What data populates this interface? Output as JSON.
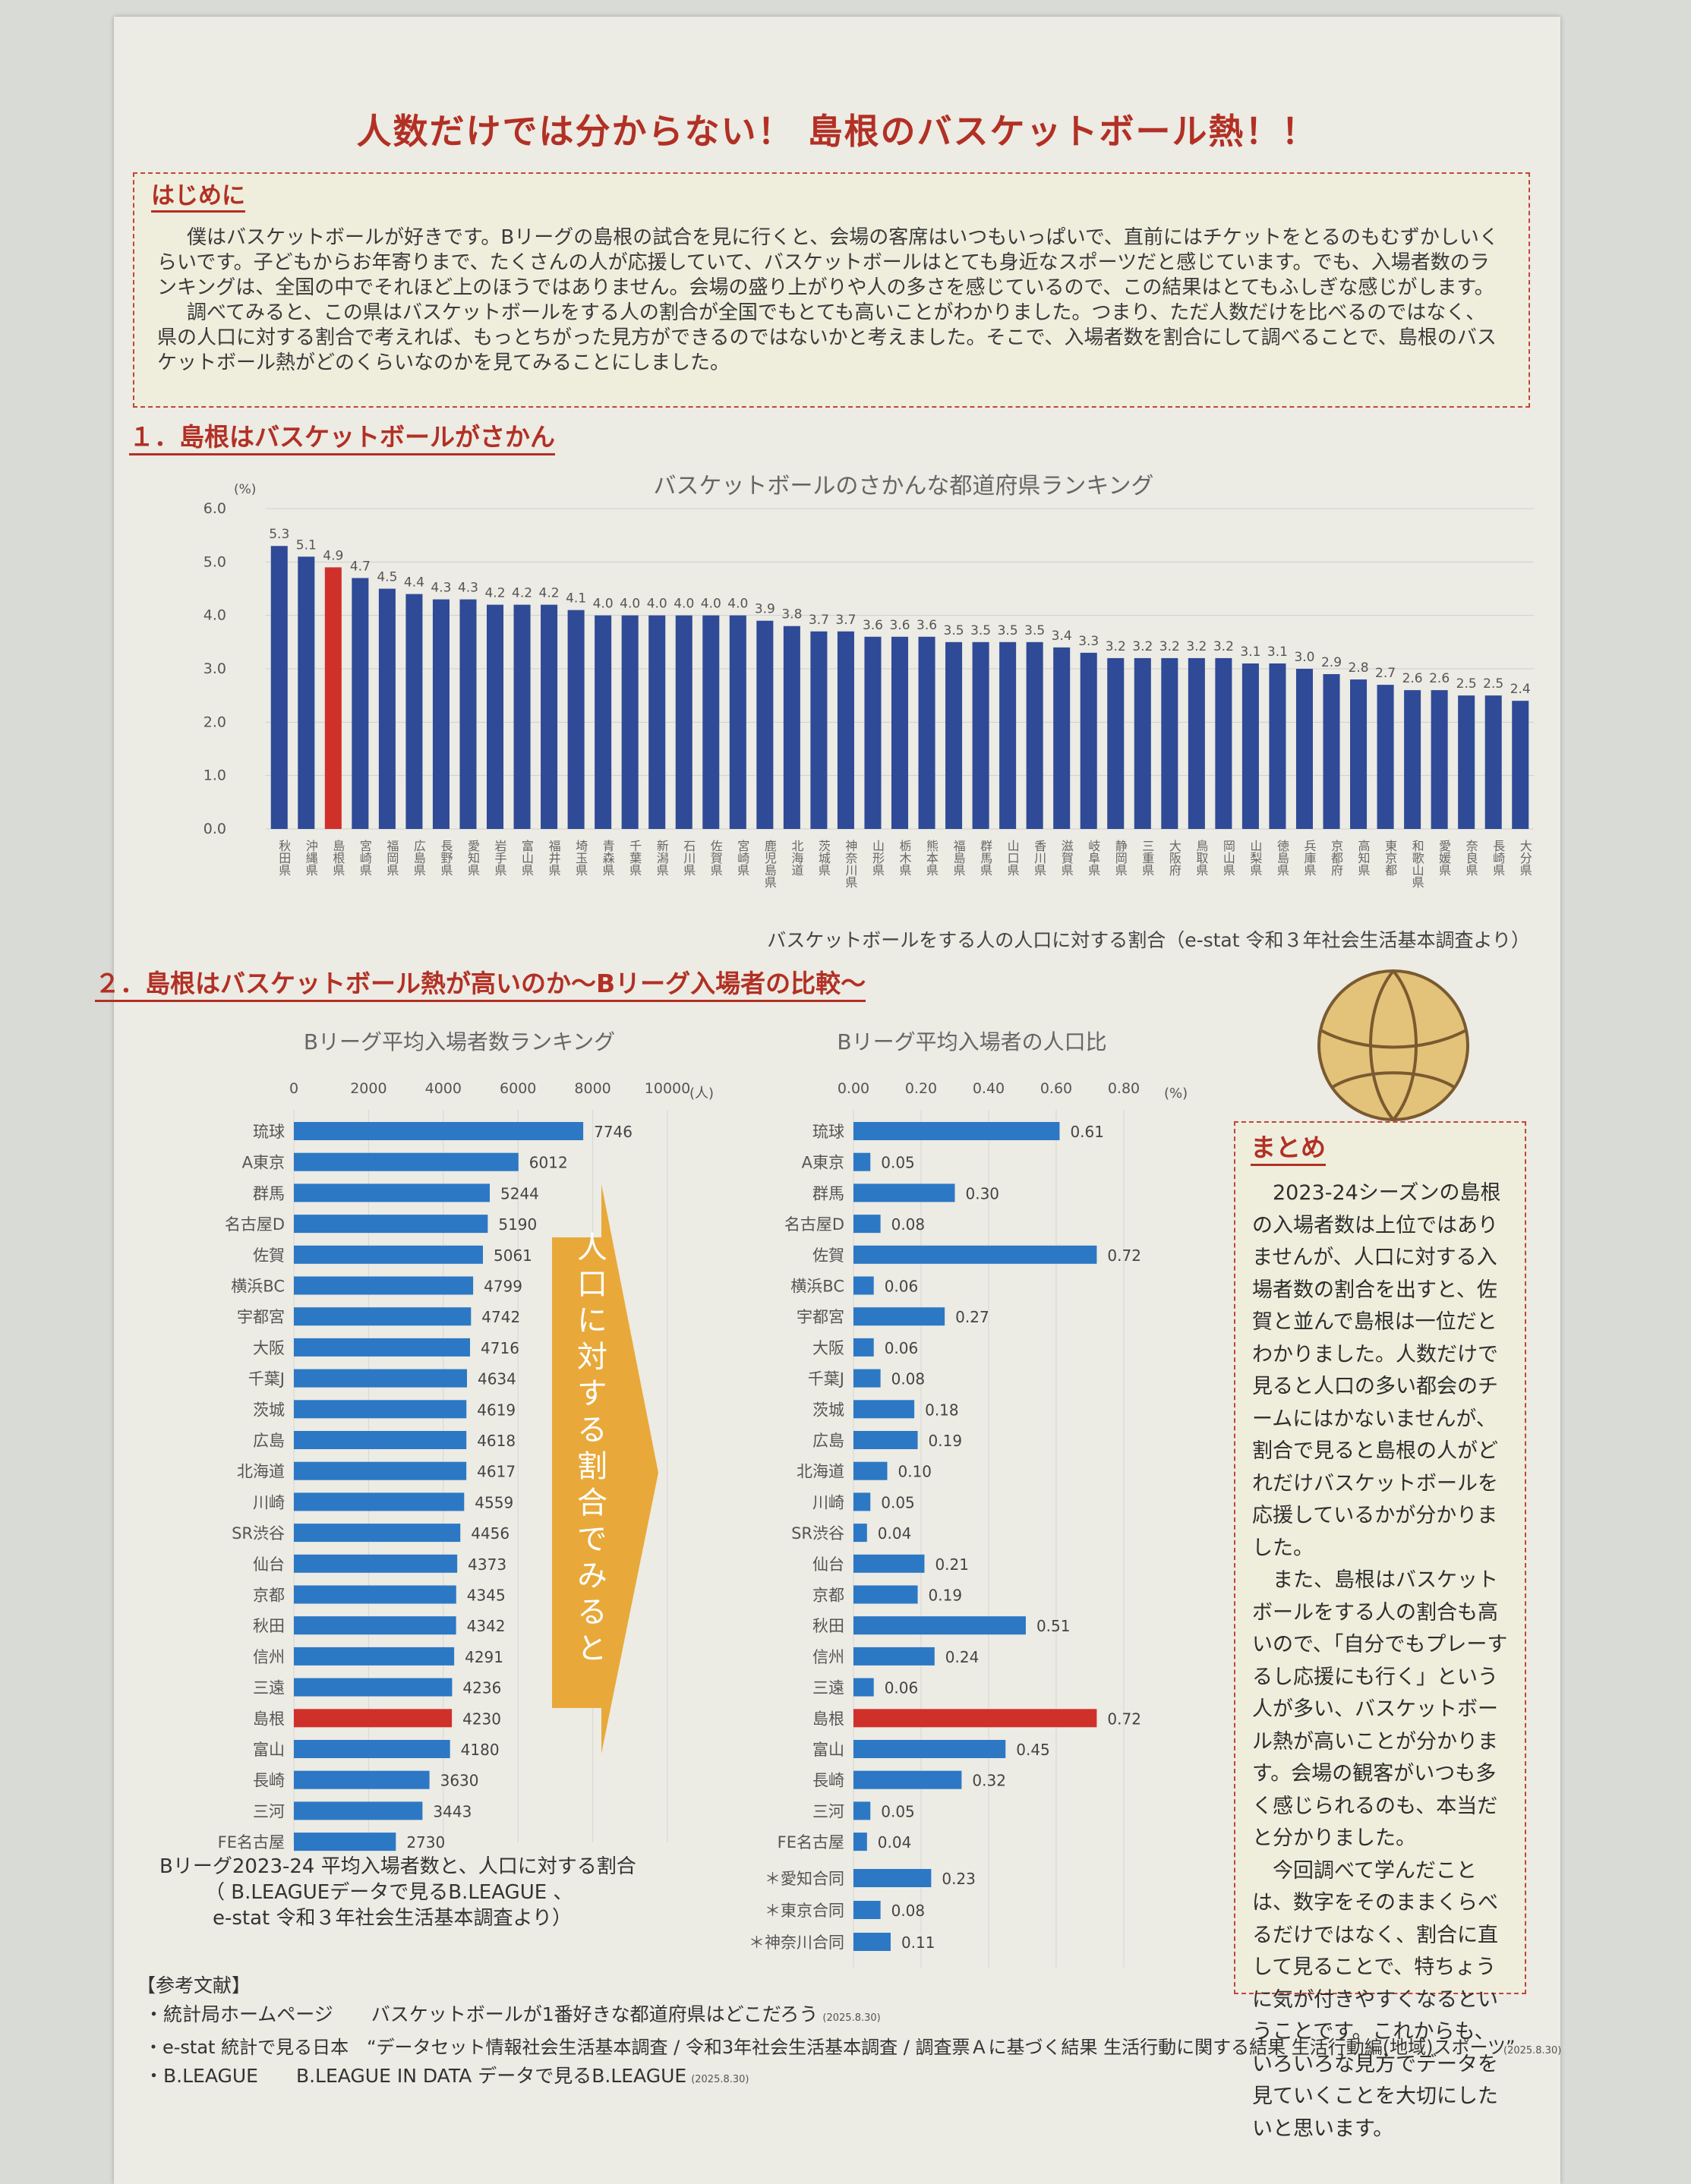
{
  "title": "人数だけでは分からない！ 島根のバスケットボール熱！！",
  "intro": {
    "heading": "はじめに",
    "p1": "僕はバスケットボールが好きです。Bリーグの島根の試合を見に行くと、会場の客席はいつもいっぱいで、直前にはチケットをとるのもむずかしいくらいです。子どもからお年寄りまで、たくさんの人が応援していて、バスケットボールはとても身近なスポーツだと感じています。でも、入場者数のランキングは、全国の中でそれほど上のほうではありません。会場の盛り上がりや人の多さを感じているので、この結果はとてもふしぎな感じがします。",
    "p2": "調べてみると、この県はバスケットボールをする人の割合が全国でもとても高いことがわかりました。つまり、ただ人数だけを比べるのではなく、県の人口に対する割合で考えれば、もっとちがった見方ができるのではないかと考えました。そこで、入場者数を割合にして調べることで、島根のバスケットボール熱がどのくらいなのかを見てみることにしました。"
  },
  "section1": {
    "heading": "１．島根はバスケットボールがさかん"
  },
  "section2": {
    "heading": "２．島根はバスケットボール熱が高いのか～Bリーグ入場者の比較～"
  },
  "arrow_text": "人口に対する割合でみると",
  "summary": {
    "heading": "まとめ",
    "paragraphs": [
      "2023-24シーズンの島根の入場者数は上位ではありませんが、人口に対する入場者数の割合を出すと、佐賀と並んで島根は一位だとわかりました。人数だけで見ると人口の多い都会のチームにはかないませんが、割合で見ると島根の人がどれだけバスケットボールを応援しているかが分かりました。",
      "また、島根はバスケットボールをする人の割合も高いので、「自分でもプレーするし応援にも行く」という人が多い、バスケットボール熱が高いことが分かります。会場の観客がいつも多く感じられるのも、本当だと分かりました。",
      "今回調べて学んだことは、数字をそのままくらべるだけではなく、割合に直して見ることで、特ちょうに気が付きやすくなるということです。これからも、いろいろな見方でデータを見ていくことを大切にしたいと思います。"
    ]
  },
  "caption2": {
    "line1": "Bリーグ2023-24 平均入場者数と、人口に対する割合",
    "line2": "（ B.LEAGUEデータで見るB.LEAGUE 、",
    "line3": "e-stat 令和３年社会生活基本調査より）"
  },
  "references": {
    "heading": "【参考文献】",
    "items": [
      {
        "text": "・統計局ホームページ　　バスケットボールが1番好きな都道府県はどこだろう",
        "date": "(2025.8.30)"
      },
      {
        "text": "・e-stat 統計で見る日本　“データセット情報社会生活基本調査 / 令和3年社会生活基本調査 / 調査票Ａに基づく結果 生活行動に関する結果 生活行動編(地域)スポーツ”",
        "date": ""
      },
      {
        "text": "・B.LEAGUE　　B.LEAGUE IN DATA データで見るB.LEAGUE",
        "date": "(2025.8.30)"
      }
    ],
    "date_far": "(2025.8.30)"
  },
  "colors": {
    "bar_blue": "#2f4a96",
    "bar_blue_light": "#2c78c4",
    "highlight_red": "#d0302a",
    "accent": "#b23024",
    "arrow_orange": "#e8a93a"
  },
  "chart_data": [
    {
      "type": "bar",
      "title": "バスケットボールのさかんな都道府県ランキング",
      "ylabel": "(%)",
      "xlabel": "バスケットボールをする人の人口に対する割合（e-stat 令和３年社会生活基本調査より）",
      "ylim": [
        0,
        6
      ],
      "yticks": [
        "0.0",
        "1.0",
        "2.0",
        "3.0",
        "4.0",
        "5.0",
        "6.0"
      ],
      "grid": true,
      "highlight": "島根県",
      "categories": [
        "秋田県",
        "沖縄県",
        "島根県",
        "宮崎県",
        "福岡県",
        "広島県",
        "長野県",
        "愛知県",
        "岩手県",
        "富山県",
        "福井県",
        "埼玉県",
        "青森県",
        "千葉県",
        "新潟県",
        "石川県",
        "佐賀県",
        "宮崎県",
        "鹿児島県",
        "北海道",
        "茨城県",
        "神奈川県",
        "山形県",
        "栃木県",
        "熊本県",
        "福島県",
        "群馬県",
        "山口県",
        "香川県",
        "滋賀県",
        "岐阜県",
        "静岡県",
        "三重県",
        "大阪府",
        "鳥取県",
        "岡山県",
        "山梨県",
        "徳島県",
        "兵庫県",
        "京都府",
        "高知県",
        "東京都",
        "和歌山県",
        "愛媛県",
        "奈良県",
        "長崎県",
        "大分県"
      ],
      "values": [
        5.3,
        5.1,
        4.9,
        4.7,
        4.5,
        4.4,
        4.3,
        4.3,
        4.2,
        4.2,
        4.2,
        4.1,
        4.0,
        4.0,
        4.0,
        4.0,
        4.0,
        4.0,
        3.9,
        3.8,
        3.7,
        3.7,
        3.6,
        3.6,
        3.6,
        3.5,
        3.5,
        3.5,
        3.5,
        3.4,
        3.3,
        3.2,
        3.2,
        3.2,
        3.2,
        3.2,
        3.1,
        3.1,
        3.0,
        2.9,
        2.8,
        2.7,
        2.6,
        2.6,
        2.5,
        2.5,
        2.4
      ],
      "labels": [
        "5.3",
        "5.1",
        "4.9",
        "4.7",
        "4.5",
        "4.4",
        "4.3",
        "4.3",
        "4.2",
        "4.2",
        "4.2",
        "4.1",
        "4.0",
        "4.0",
        "4.0",
        "4.0",
        "4.0",
        "4.0",
        "3.9",
        "3.8",
        "3.7",
        "3.7",
        "3.6",
        "3.6",
        "3.6",
        "3.5",
        "3.5",
        "3.5",
        "3.5",
        "3.4",
        "3.3",
        "3.2",
        "3.2",
        "3.2",
        "3.2",
        "3.2",
        "3.1",
        "3.1",
        "3.0",
        "2.9",
        "2.8",
        "2.7",
        "2.6",
        "2.6",
        "2.5",
        "2.5",
        "2.4"
      ]
    },
    {
      "type": "bar",
      "orientation": "horizontal",
      "title": "Bリーグ平均入場者数ランキング",
      "unit": "(人)",
      "xlim": [
        0,
        10000
      ],
      "xticks": [
        "0",
        "2000",
        "4000",
        "6000",
        "8000",
        "10000"
      ],
      "highlight": "島根",
      "categories": [
        "琉球",
        "A東京",
        "群馬",
        "名古屋D",
        "佐賀",
        "横浜BC",
        "宇都宮",
        "大阪",
        "千葉J",
        "茨城",
        "広島",
        "北海道",
        "川崎",
        "SR渋谷",
        "仙台",
        "京都",
        "秋田",
        "信州",
        "三遠",
        "島根",
        "富山",
        "長崎",
        "三河",
        "FE名古屋"
      ],
      "values": [
        7746,
        6012,
        5244,
        5190,
        5061,
        4799,
        4742,
        4716,
        4634,
        4619,
        4618,
        4617,
        4559,
        4456,
        4373,
        4345,
        4342,
        4291,
        4236,
        4230,
        4180,
        3630,
        3443,
        2730
      ],
      "labels": [
        "7746",
        "6012",
        "5244",
        "5190",
        "5061",
        "4799",
        "4742",
        "4716",
        "4634",
        "4619",
        "4618",
        "4617",
        "4559",
        "4456",
        "4373",
        "4345",
        "4342",
        "4291",
        "4236",
        "4230",
        "4180",
        "3630",
        "3443",
        "2730"
      ]
    },
    {
      "type": "bar",
      "orientation": "horizontal",
      "title": "Bリーグ平均入場者の人口比",
      "unit": "(%)",
      "xlim": [
        0,
        0.8
      ],
      "xticks": [
        "0.00",
        "0.20",
        "0.40",
        "0.60",
        "0.80"
      ],
      "highlight": "島根",
      "categories": [
        "琉球",
        "A東京",
        "群馬",
        "名古屋D",
        "佐賀",
        "横浜BC",
        "宇都宮",
        "大阪",
        "千葉J",
        "茨城",
        "広島",
        "北海道",
        "川崎",
        "SR渋谷",
        "仙台",
        "京都",
        "秋田",
        "信州",
        "三遠",
        "島根",
        "富山",
        "長崎",
        "三河",
        "FE名古屋"
      ],
      "values": [
        0.61,
        0.05,
        0.3,
        0.08,
        0.72,
        0.06,
        0.27,
        0.06,
        0.08,
        0.18,
        0.19,
        0.1,
        0.05,
        0.04,
        0.21,
        0.19,
        0.51,
        0.24,
        0.06,
        0.72,
        0.45,
        0.32,
        0.05,
        0.04
      ],
      "labels": [
        "0.61",
        "0.05",
        "0.30",
        "0.08",
        "0.72",
        "0.06",
        "0.27",
        "0.06",
        "0.08",
        "0.18",
        "0.19",
        "0.10",
        "0.05",
        "0.04",
        "0.21",
        "0.19",
        "0.51",
        "0.24",
        "0.06",
        "0.72",
        "0.45",
        "0.32",
        "0.05",
        "0.04"
      ],
      "extra_categories": [
        "＊愛知合同",
        "＊東京合同",
        "＊神奈川合同"
      ],
      "extra_values": [
        0.23,
        0.08,
        0.11
      ],
      "extra_labels": [
        "0.23",
        "0.08",
        "0.11"
      ]
    }
  ]
}
